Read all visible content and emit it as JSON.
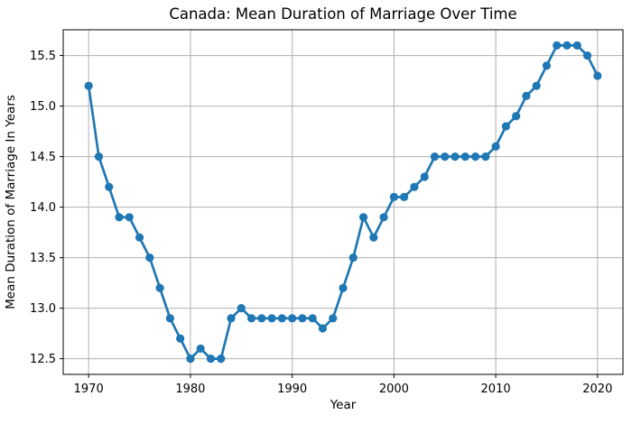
{
  "chart_data": {
    "type": "line",
    "title": "Canada: Mean Duration of Marriage Over Time",
    "xlabel": "Year",
    "ylabel": "Mean Duration of Marriage In Years",
    "x": [
      1970,
      1971,
      1972,
      1973,
      1974,
      1975,
      1976,
      1977,
      1978,
      1979,
      1980,
      1981,
      1982,
      1983,
      1984,
      1985,
      1986,
      1987,
      1988,
      1989,
      1990,
      1991,
      1992,
      1993,
      1994,
      1995,
      1996,
      1997,
      1998,
      1999,
      2000,
      2001,
      2002,
      2003,
      2004,
      2005,
      2006,
      2007,
      2008,
      2009,
      2010,
      2011,
      2012,
      2013,
      2014,
      2015,
      2016,
      2017,
      2018,
      2019,
      2020
    ],
    "values": [
      15.2,
      14.5,
      14.2,
      13.9,
      13.9,
      13.7,
      13.5,
      13.2,
      12.9,
      12.7,
      12.5,
      12.6,
      12.5,
      12.5,
      12.9,
      13.0,
      12.9,
      12.9,
      12.9,
      12.9,
      12.9,
      12.9,
      12.9,
      12.8,
      12.9,
      13.2,
      13.5,
      13.9,
      13.7,
      13.9,
      14.1,
      14.1,
      14.2,
      14.3,
      14.5,
      14.5,
      14.5,
      14.5,
      14.5,
      14.5,
      14.6,
      14.8,
      14.9,
      15.1,
      15.2,
      15.4,
      15.6,
      15.6,
      15.6,
      15.5,
      15.3
    ],
    "x_ticks": [
      1970,
      1980,
      1990,
      2000,
      2010,
      2020
    ],
    "x_tick_labels": [
      "1970",
      "1980",
      "1990",
      "2000",
      "2010",
      "2020"
    ],
    "y_ticks": [
      12.5,
      13.0,
      13.5,
      14.0,
      14.5,
      15.0,
      15.5
    ],
    "y_tick_labels": [
      "12.5",
      "13.0",
      "13.5",
      "14.0",
      "14.5",
      "15.0",
      "15.5"
    ],
    "xlim": [
      1967.5,
      2022.5
    ],
    "ylim": [
      12.345,
      15.755
    ],
    "grid": true,
    "legend_position": "none",
    "line_color": "#1f77b4",
    "grid_color": "#b0b0b0",
    "spine_color": "#000000",
    "marker": "circle"
  }
}
